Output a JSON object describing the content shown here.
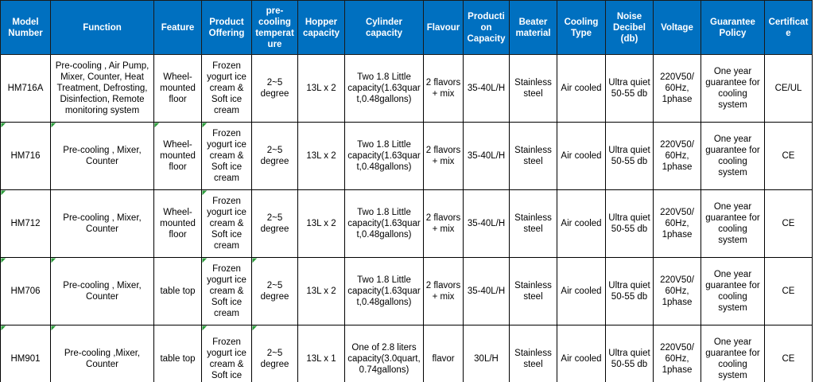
{
  "table": {
    "header": [
      "Model Number",
      "Function",
      "Feature",
      "Product Offering",
      "pre-cooling temperature",
      "Hopper capacity",
      "Cylinder capacity",
      "Flavour",
      "Production Capacity",
      "Beater material",
      "Cooling Type",
      "Noise Decibel (db)",
      "Voltage",
      "Guarantee Policy",
      "Certificate"
    ],
    "rows": [
      [
        "HM716A",
        "Pre-cooling , Air Pump, Mixer, Counter, Heat Treatment, Defrosting, Disinfection, Remote monitoring system",
        "Wheel-mounted floor",
        "Frozen yogurt ice cream & Soft ice cream",
        "2~5 degree",
        "13L x 2",
        "Two 1.8 Little capacity(1.63quart,0.48gallons)",
        "2 flavors + mix",
        "35-40L/H",
        "Stainless steel",
        "Air cooled",
        "Ultra quiet 50-55 db",
        "220V50/ 60Hz, 1phase",
        "One year guarantee for cooling system",
        "CE/UL"
      ],
      [
        "HM716",
        "Pre-cooling , Mixer, Counter",
        "Wheel-mounted floor",
        "Frozen yogurt ice cream & Soft ice cream",
        "2~5 degree",
        "13L x 2",
        "Two 1.8 Little capacity(1.63quart,0.48gallons)",
        "2 flavors + mix",
        "35-40L/H",
        "Stainless steel",
        "Air cooled",
        "Ultra quiet 50-55 db",
        "220V50/ 60Hz, 1phase",
        "One year guarantee for cooling system",
        "CE"
      ],
      [
        "HM712",
        "Pre-cooling , Mixer, Counter",
        "Wheel-mounted floor",
        "Frozen yogurt ice cream & Soft ice cream",
        "2~5 degree",
        "13L x 2",
        "Two 1.8 Little capacity(1.63quart,0.48gallons)",
        "2 flavors + mix",
        "35-40L/H",
        "Stainless steel",
        "Air cooled",
        "Ultra quiet 50-55 db",
        "220V50/ 60Hz, 1phase",
        "One year guarantee for cooling system",
        "CE"
      ],
      [
        "HM706",
        "Pre-cooling , Mixer, Counter",
        "table top",
        "Frozen yogurt ice cream & Soft ice cream",
        "2~5 degree",
        "13L x 2",
        "Two 1.8 Little capacity(1.63quart,0.48gallons)",
        "2 flavors + mix",
        "35-40L/H",
        "Stainless steel",
        "Air cooled",
        "Ultra quiet 50-55 db",
        "220V50/ 60Hz, 1phase",
        "One year guarantee for cooling system",
        "CE"
      ],
      [
        "HM901",
        "Pre-cooling ,Mixer, Counter",
        "table top",
        "Frozen yogurt ice cream & Soft ice",
        "2~5 degree",
        "13L x 1",
        "One of 2.8 liters capacity(3.0quart,0.74gallons)",
        "flavor",
        "30L/H",
        "Stainless steel",
        "Air cooled",
        "Ultra quiet 50-55 db",
        "220V50/ 60Hz, 1phase",
        "One year guarantee for cooling system",
        "CE"
      ]
    ]
  }
}
